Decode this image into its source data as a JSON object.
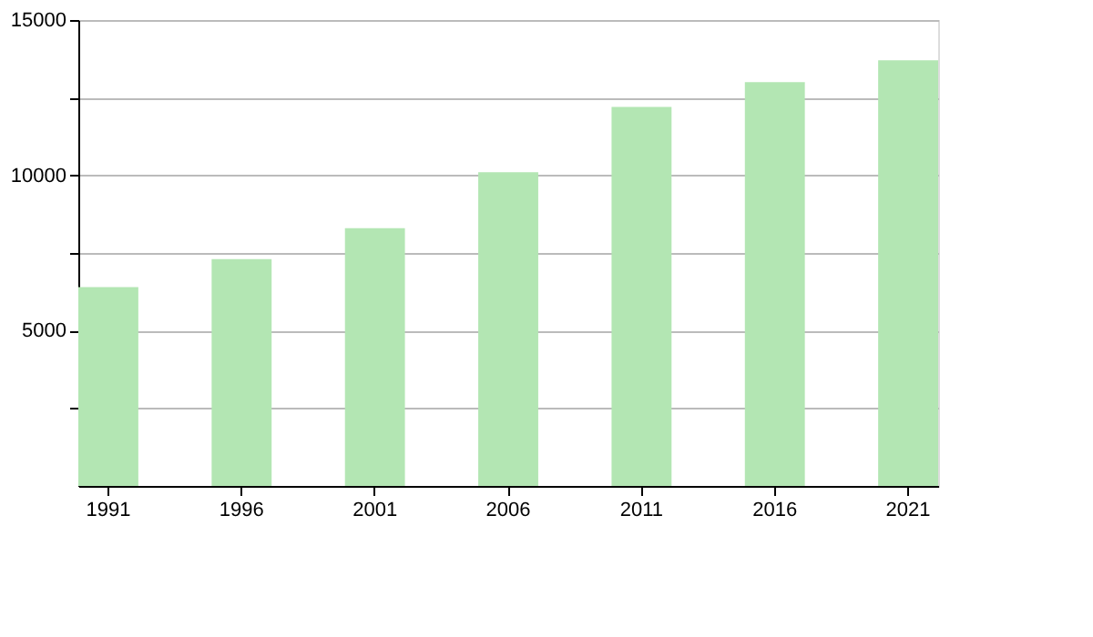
{
  "chart_data": {
    "type": "bar",
    "categories": [
      "1991",
      "1996",
      "2001",
      "2006",
      "2011",
      "2016",
      "2021"
    ],
    "values": [
      6400,
      7300,
      8300,
      10100,
      12200,
      13000,
      13700
    ],
    "color": "#b3e6b3",
    "ylim": [
      0,
      15000
    ],
    "yticks": [
      {
        "value": 2500,
        "label": null
      },
      5000,
      {
        "value": 7500,
        "label": null
      },
      10000,
      {
        "value": 12500,
        "label": null
      },
      15000
    ],
    "grid": "y"
  }
}
